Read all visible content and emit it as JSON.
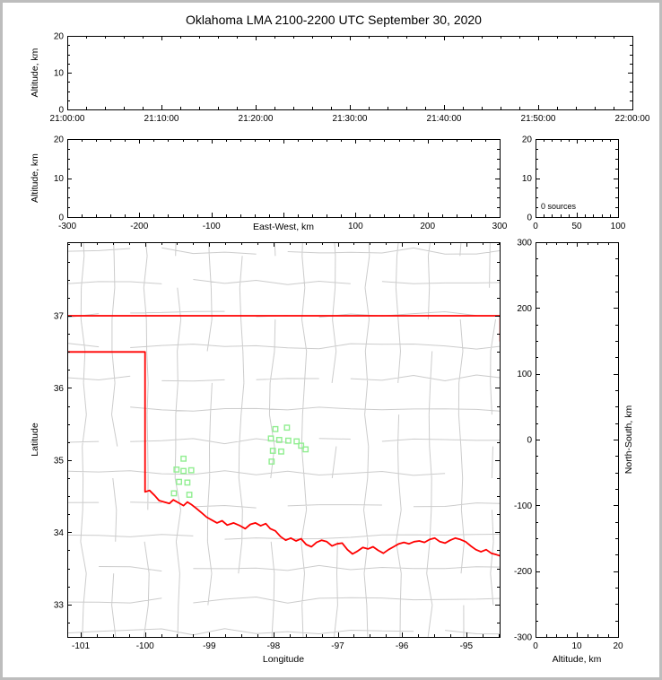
{
  "title": "Oklahoma LMA 2100-2200 UTC September 30, 2020",
  "colors": {
    "background": "#ffffff",
    "frame_border": "#bdbdbd",
    "axis": "#000000",
    "text": "#000000",
    "county_line": "#cccccc",
    "state_border": "#ff0000",
    "station_marker": "#90ee90"
  },
  "chart_data": [
    {
      "id": "time-height",
      "type": "scatter",
      "description": "time vs altitude panel, no data points",
      "xlabel": "",
      "xlabel_mode": "none",
      "ylabel": "Altitude, km",
      "ylabel_side": "left",
      "xlim": [
        0,
        3600
      ],
      "ylim": [
        0,
        20
      ],
      "xticks": [
        0,
        600,
        1200,
        1800,
        2400,
        3000,
        3600
      ],
      "xtick_labels": [
        "21:00:00",
        "21:10:00",
        "21:20:00",
        "21:30:00",
        "21:40:00",
        "21:50:00",
        "22:00:00"
      ],
      "yticks": [
        0,
        10,
        20
      ],
      "ytick_labels": [
        "0",
        "10",
        "20"
      ],
      "xminor": 120,
      "yminor": 2.5,
      "points": []
    },
    {
      "id": "ew-height",
      "type": "scatter",
      "description": "east-west distance vs altitude panel, no data points",
      "xlabel": "East-West, km",
      "xlabel_mode": "inline",
      "ylabel": "Altitude, km",
      "ylabel_side": "left",
      "xlim": [
        -300,
        300
      ],
      "ylim": [
        0,
        20
      ],
      "xticks": [
        -300,
        -200,
        -100,
        0,
        100,
        200,
        300
      ],
      "xtick_labels": [
        "-300",
        "-200",
        "-100",
        "",
        "100",
        "200",
        "300"
      ],
      "yticks": [
        0,
        10,
        20
      ],
      "ytick_labels": [
        "0",
        "10",
        "20"
      ],
      "xminor": 20,
      "yminor": 2.5,
      "points": []
    },
    {
      "id": "altitude-histogram",
      "type": "bar",
      "description": "altitude histogram of sources, empty",
      "annotation": "0 sources",
      "xlabel": "",
      "xlabel_mode": "none",
      "ylabel": "",
      "ylabel_side": "left",
      "xlim": [
        0,
        100
      ],
      "ylim": [
        0,
        20
      ],
      "xticks": [
        0,
        50,
        100
      ],
      "xtick_labels": [
        "0",
        "50",
        "100"
      ],
      "yticks": [
        0,
        10,
        20
      ],
      "ytick_labels": [
        "0",
        "10",
        "20"
      ],
      "xminor": 10,
      "yminor": 2.5,
      "values": []
    },
    {
      "id": "plan-map",
      "type": "scatter",
      "description": "plan view map of Oklahoma with county lines, red state border and green LMA station squares",
      "xlabel": "Longitude",
      "xlabel_mode": "below",
      "ylabel": "Latitude",
      "ylabel_side": "left",
      "xlim": [
        -101.21,
        -94.48
      ],
      "ylim": [
        32.55,
        38.02
      ],
      "xticks": [
        -101,
        -100,
        -99,
        -98,
        -97,
        -96,
        -95
      ],
      "xtick_labels": [
        "-101",
        "-100",
        "-99",
        "-98",
        "-97",
        "-96",
        "-95"
      ],
      "yticks": [
        33,
        34,
        35,
        36,
        37
      ],
      "ytick_labels": [
        "33",
        "34",
        "35",
        "36",
        "37"
      ],
      "xminor": 0.25,
      "yminor": 0.25,
      "stations": [
        [
          -99.4,
          35.02
        ],
        [
          -99.51,
          34.87
        ],
        [
          -99.4,
          34.85
        ],
        [
          -99.28,
          34.86
        ],
        [
          -99.47,
          34.7
        ],
        [
          -99.34,
          34.69
        ],
        [
          -99.55,
          34.54
        ],
        [
          -99.31,
          34.52
        ],
        [
          -97.97,
          35.43
        ],
        [
          -97.79,
          35.45
        ],
        [
          -98.04,
          35.3
        ],
        [
          -97.91,
          35.28
        ],
        [
          -97.77,
          35.27
        ],
        [
          -97.64,
          35.26
        ],
        [
          -98.01,
          35.13
        ],
        [
          -97.88,
          35.12
        ],
        [
          -98.03,
          34.98
        ],
        [
          -97.57,
          35.2
        ],
        [
          -97.5,
          35.15
        ]
      ],
      "state_border": [
        [
          [
            -101.21,
            37.0
          ],
          [
            -94.48,
            37.0
          ]
        ],
        [
          [
            -94.47,
            37.0
          ],
          [
            -94.47,
            36.65
          ],
          [
            -94.43,
            36.55
          ]
        ],
        [
          [
            -101.21,
            36.5
          ],
          [
            -100.0,
            36.5
          ],
          [
            -100.0,
            34.56
          ],
          [
            -99.93,
            34.58
          ],
          [
            -99.85,
            34.51
          ],
          [
            -99.78,
            34.44
          ],
          [
            -99.7,
            34.42
          ],
          [
            -99.62,
            34.4
          ],
          [
            -99.56,
            34.45
          ],
          [
            -99.48,
            34.41
          ],
          [
            -99.4,
            34.37
          ],
          [
            -99.34,
            34.42
          ],
          [
            -99.27,
            34.38
          ],
          [
            -99.2,
            34.33
          ],
          [
            -99.12,
            34.27
          ],
          [
            -99.04,
            34.21
          ],
          [
            -98.96,
            34.17
          ],
          [
            -98.88,
            34.13
          ],
          [
            -98.8,
            34.16
          ],
          [
            -98.72,
            34.1
          ],
          [
            -98.62,
            34.13
          ],
          [
            -98.52,
            34.09
          ],
          [
            -98.44,
            34.05
          ],
          [
            -98.36,
            34.11
          ],
          [
            -98.28,
            34.13
          ],
          [
            -98.2,
            34.09
          ],
          [
            -98.12,
            34.12
          ],
          [
            -98.05,
            34.05
          ],
          [
            -97.97,
            34.02
          ],
          [
            -97.89,
            33.94
          ],
          [
            -97.81,
            33.89
          ],
          [
            -97.73,
            33.92
          ],
          [
            -97.65,
            33.88
          ],
          [
            -97.57,
            33.91
          ],
          [
            -97.49,
            33.83
          ],
          [
            -97.41,
            33.8
          ],
          [
            -97.33,
            33.86
          ],
          [
            -97.25,
            33.89
          ],
          [
            -97.17,
            33.87
          ],
          [
            -97.09,
            33.81
          ],
          [
            -97.01,
            33.84
          ],
          [
            -96.93,
            33.85
          ],
          [
            -96.85,
            33.76
          ],
          [
            -96.77,
            33.7
          ],
          [
            -96.69,
            33.74
          ],
          [
            -96.61,
            33.79
          ],
          [
            -96.53,
            33.77
          ],
          [
            -96.45,
            33.8
          ],
          [
            -96.37,
            33.75
          ],
          [
            -96.29,
            33.71
          ],
          [
            -96.21,
            33.76
          ],
          [
            -96.13,
            33.8
          ],
          [
            -96.05,
            33.84
          ],
          [
            -95.97,
            33.86
          ],
          [
            -95.89,
            33.84
          ],
          [
            -95.81,
            33.87
          ],
          [
            -95.73,
            33.88
          ],
          [
            -95.65,
            33.86
          ],
          [
            -95.57,
            33.9
          ],
          [
            -95.49,
            33.92
          ],
          [
            -95.41,
            33.87
          ],
          [
            -95.33,
            33.85
          ],
          [
            -95.25,
            33.89
          ],
          [
            -95.17,
            33.92
          ],
          [
            -95.09,
            33.9
          ],
          [
            -95.01,
            33.87
          ],
          [
            -94.93,
            33.81
          ],
          [
            -94.85,
            33.76
          ],
          [
            -94.77,
            33.73
          ],
          [
            -94.69,
            33.76
          ],
          [
            -94.61,
            33.71
          ],
          [
            -94.53,
            33.69
          ],
          [
            -94.46,
            33.67
          ]
        ]
      ],
      "county_grid": {
        "lon_start": -101.45,
        "lon_step": 0.49,
        "lon_count": 15,
        "lat_start": 32.62,
        "lat_step": 0.44,
        "lat_count": 13,
        "jitter_lon": 0.05,
        "jitter_lat": 0.045,
        "break_prob": 0.15
      }
    },
    {
      "id": "ns-height",
      "type": "scatter",
      "description": "altitude vs north-south distance panel, no data points",
      "xlabel": "Altitude, km",
      "xlabel_mode": "below",
      "ylabel": "North-South, km",
      "ylabel_side": "right",
      "xlim": [
        0,
        20
      ],
      "ylim": [
        -300,
        300
      ],
      "xticks": [
        0,
        10,
        20
      ],
      "xtick_labels": [
        "0",
        "10",
        "20"
      ],
      "yticks": [
        -300,
        -200,
        -100,
        0,
        100,
        200,
        300
      ],
      "ytick_labels": [
        "-300",
        "-200",
        "-100",
        "0",
        "100",
        "200",
        "300"
      ],
      "xminor": 2.5,
      "yminor": 25,
      "points": []
    }
  ]
}
